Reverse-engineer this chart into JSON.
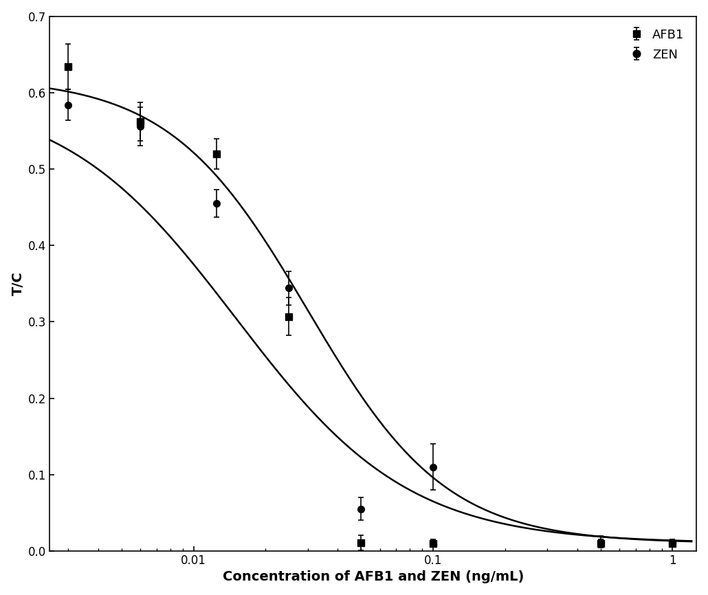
{
  "afb1_x": [
    0.003,
    0.006,
    0.0125,
    0.025,
    0.05,
    0.1,
    0.5,
    1.0
  ],
  "afb1_y": [
    0.634,
    0.562,
    0.52,
    0.307,
    0.011,
    0.01,
    0.01,
    0.01
  ],
  "afb1_yerr": [
    0.03,
    0.025,
    0.02,
    0.025,
    0.01,
    0.005,
    0.005,
    0.005
  ],
  "zen_x": [
    0.003,
    0.006,
    0.0125,
    0.025,
    0.05,
    0.1,
    0.5,
    1.0
  ],
  "zen_y": [
    0.584,
    0.556,
    0.455,
    0.344,
    0.055,
    0.11,
    0.012,
    0.01
  ],
  "zen_yerr": [
    0.02,
    0.025,
    0.018,
    0.022,
    0.015,
    0.03,
    0.008,
    0.005
  ],
  "title": "",
  "xlabel": "Concentration of AFB1 and ZEN (ng/mL)",
  "ylabel": "T/C",
  "ylim": [
    0.0,
    0.7
  ],
  "yticks": [
    0.0,
    0.1,
    0.2,
    0.3,
    0.4,
    0.5,
    0.6,
    0.7
  ],
  "xlim_log": [
    -2.6,
    0.1
  ],
  "color": "#000000",
  "background": "#ffffff",
  "legend_labels": [
    "AFB1",
    "ZEN"
  ],
  "marker_afb1": "s",
  "marker_zen": "o",
  "markersize": 7,
  "linewidth": 1.8
}
